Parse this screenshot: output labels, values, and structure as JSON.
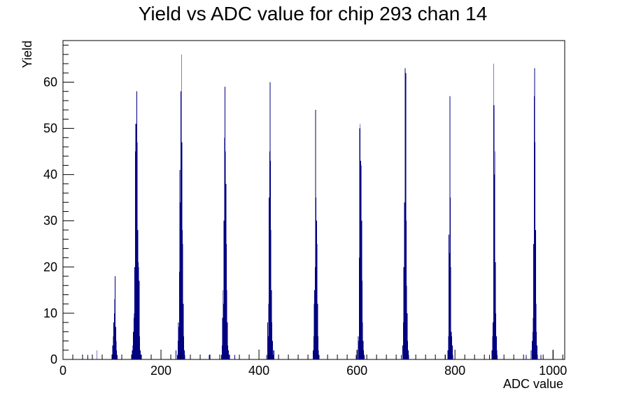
{
  "chart_data": {
    "type": "bar",
    "title": "Yield vs ADC value for chip 293 chan 14",
    "xlabel": "ADC value",
    "ylabel": "Yield",
    "xlim": [
      0,
      1024
    ],
    "ylim": [
      0,
      69
    ],
    "grid": false,
    "legend": "none",
    "color": "#000080",
    "x_ticks": [
      0,
      200,
      400,
      600,
      800,
      1000
    ],
    "x_tick_labels": [
      "0",
      "200",
      "400",
      "600",
      "800",
      "1000"
    ],
    "y_ticks": [
      0,
      10,
      20,
      30,
      40,
      50,
      60
    ],
    "y_tick_labels": [
      "0",
      "10",
      "20",
      "30",
      "40",
      "50",
      "60"
    ],
    "series": [
      {
        "bins": [
          [
            50,
            1
          ],
          [
            69,
            2
          ],
          [
            100,
            1
          ],
          [
            101,
            3
          ],
          [
            102,
            5
          ],
          [
            103,
            8
          ],
          [
            104,
            13
          ],
          [
            105,
            10
          ],
          [
            106,
            18
          ],
          [
            107,
            7
          ],
          [
            108,
            4
          ],
          [
            109,
            2
          ],
          [
            110,
            1
          ],
          [
            140,
            1
          ],
          [
            141,
            2
          ],
          [
            142,
            3
          ],
          [
            143,
            6
          ],
          [
            144,
            9
          ],
          [
            145,
            10
          ],
          [
            146,
            20
          ],
          [
            147,
            45
          ],
          [
            148,
            51
          ],
          [
            149,
            51
          ],
          [
            150,
            58
          ],
          [
            151,
            47
          ],
          [
            152,
            28
          ],
          [
            153,
            21
          ],
          [
            154,
            20
          ],
          [
            155,
            17
          ],
          [
            156,
            5
          ],
          [
            157,
            2
          ],
          [
            158,
            1
          ],
          [
            230,
            2
          ],
          [
            233,
            1
          ],
          [
            234,
            4
          ],
          [
            235,
            8
          ],
          [
            236,
            7
          ],
          [
            237,
            19
          ],
          [
            238,
            41
          ],
          [
            239,
            34
          ],
          [
            240,
            58
          ],
          [
            241,
            66
          ],
          [
            242,
            47
          ],
          [
            243,
            28
          ],
          [
            244,
            25
          ],
          [
            245,
            12
          ],
          [
            246,
            5
          ],
          [
            247,
            2
          ],
          [
            248,
            1
          ],
          [
            298,
            1
          ],
          [
            323,
            1
          ],
          [
            324,
            3
          ],
          [
            325,
            9
          ],
          [
            326,
            15
          ],
          [
            327,
            12
          ],
          [
            328,
            30
          ],
          [
            329,
            48
          ],
          [
            330,
            59
          ],
          [
            331,
            45
          ],
          [
            332,
            38
          ],
          [
            333,
            25
          ],
          [
            334,
            15
          ],
          [
            335,
            8
          ],
          [
            336,
            3
          ],
          [
            337,
            2
          ],
          [
            338,
            1
          ],
          [
            350,
            1
          ],
          [
            415,
            1
          ],
          [
            417,
            8
          ],
          [
            418,
            5
          ],
          [
            419,
            12
          ],
          [
            420,
            35
          ],
          [
            421,
            45
          ],
          [
            422,
            60
          ],
          [
            423,
            43
          ],
          [
            424,
            28
          ],
          [
            425,
            15
          ],
          [
            426,
            8
          ],
          [
            427,
            4
          ],
          [
            428,
            2
          ],
          [
            429,
            1
          ],
          [
            430,
            2
          ],
          [
            510,
            2
          ],
          [
            511,
            5
          ],
          [
            512,
            12
          ],
          [
            513,
            15
          ],
          [
            514,
            20
          ],
          [
            515,
            54
          ],
          [
            516,
            35
          ],
          [
            517,
            30
          ],
          [
            518,
            25
          ],
          [
            519,
            12
          ],
          [
            520,
            5
          ],
          [
            521,
            2
          ],
          [
            522,
            1
          ],
          [
            598,
            1
          ],
          [
            600,
            2
          ],
          [
            602,
            5
          ],
          [
            603,
            4
          ],
          [
            604,
            22
          ],
          [
            605,
            50
          ],
          [
            606,
            51
          ],
          [
            607,
            43
          ],
          [
            608,
            42
          ],
          [
            609,
            30
          ],
          [
            610,
            17
          ],
          [
            611,
            8
          ],
          [
            612,
            4
          ],
          [
            613,
            2
          ],
          [
            614,
            1
          ],
          [
            690,
            1
          ],
          [
            693,
            3
          ],
          [
            694,
            8
          ],
          [
            695,
            20
          ],
          [
            696,
            34
          ],
          [
            697,
            34
          ],
          [
            698,
            63
          ],
          [
            699,
            62
          ],
          [
            700,
            30
          ],
          [
            701,
            16
          ],
          [
            702,
            10
          ],
          [
            703,
            4
          ],
          [
            704,
            2
          ],
          [
            705,
            1
          ],
          [
            780,
            1
          ],
          [
            785,
            2
          ],
          [
            786,
            5
          ],
          [
            787,
            27
          ],
          [
            788,
            23
          ],
          [
            789,
            57
          ],
          [
            790,
            35
          ],
          [
            791,
            20
          ],
          [
            792,
            6
          ],
          [
            793,
            5
          ],
          [
            794,
            3
          ],
          [
            795,
            1
          ],
          [
            870,
            1
          ],
          [
            875,
            2
          ],
          [
            876,
            5
          ],
          [
            877,
            8
          ],
          [
            878,
            64
          ],
          [
            879,
            55
          ],
          [
            880,
            40
          ],
          [
            881,
            45
          ],
          [
            882,
            21
          ],
          [
            883,
            10
          ],
          [
            884,
            5
          ],
          [
            885,
            2
          ],
          [
            886,
            1
          ],
          [
            945,
            1
          ],
          [
            955,
            2
          ],
          [
            957,
            4
          ],
          [
            958,
            9
          ],
          [
            959,
            6
          ],
          [
            960,
            25
          ],
          [
            961,
            57
          ],
          [
            962,
            63
          ],
          [
            963,
            47
          ],
          [
            964,
            28
          ],
          [
            965,
            12
          ],
          [
            966,
            6
          ],
          [
            967,
            3
          ],
          [
            968,
            1
          ],
          [
            975,
            1
          ],
          [
            1000,
            2
          ]
        ]
      }
    ]
  }
}
